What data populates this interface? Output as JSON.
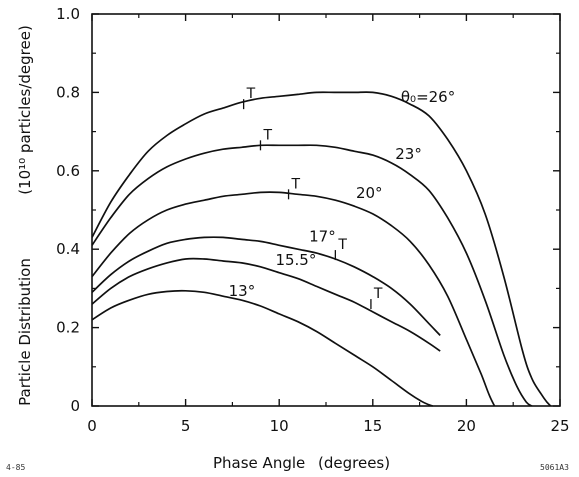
{
  "chart_data": {
    "type": "line",
    "xlabel": "Phase Angle",
    "xlabel_unit": "(degrees)",
    "ylabel": "Particle Distribution",
    "ylabel_unit": "(10¹⁰ particles/degree)",
    "xlim": [
      0,
      25
    ],
    "ylim": [
      0,
      1.0
    ],
    "x_ticks": [
      "0",
      "5",
      "10",
      "15",
      "20",
      "25"
    ],
    "y_ticks": [
      "0",
      "0.2",
      "0.4",
      "0.6",
      "0.8",
      "1.0"
    ],
    "grid": false,
    "legend": "none",
    "series": [
      {
        "name": "θ₀=26°",
        "label": "θ₀=26°",
        "label_pos": [
          16.5,
          0.775
        ],
        "x": [
          0,
          1,
          2,
          3,
          4,
          5,
          6,
          7,
          8,
          9,
          10,
          11,
          12,
          13,
          14,
          15,
          16,
          17,
          18,
          19,
          20,
          21,
          22,
          23,
          23.5,
          24,
          24.3,
          24.5
        ],
        "y": [
          0.43,
          0.52,
          0.59,
          0.65,
          0.69,
          0.72,
          0.745,
          0.76,
          0.775,
          0.785,
          0.79,
          0.795,
          0.8,
          0.8,
          0.8,
          0.8,
          0.79,
          0.77,
          0.74,
          0.68,
          0.6,
          0.49,
          0.33,
          0.14,
          0.07,
          0.03,
          0.01,
          0.0
        ],
        "T_marker": [
          8.1,
          0.77
        ]
      },
      {
        "name": "23°",
        "label": "23°",
        "label_pos": [
          16.2,
          0.63
        ],
        "x": [
          0,
          1,
          2,
          3,
          4,
          5,
          6,
          7,
          8,
          9,
          10,
          11,
          12,
          13,
          14,
          15,
          16,
          17,
          18,
          19,
          20,
          21,
          22,
          22.7,
          23.2,
          23.5
        ],
        "y": [
          0.41,
          0.48,
          0.54,
          0.58,
          0.61,
          0.63,
          0.645,
          0.655,
          0.66,
          0.665,
          0.665,
          0.665,
          0.665,
          0.66,
          0.65,
          0.64,
          0.62,
          0.59,
          0.55,
          0.48,
          0.39,
          0.27,
          0.13,
          0.05,
          0.01,
          0.0
        ],
        "T_marker": [
          9.0,
          0.665
        ]
      },
      {
        "name": "20°",
        "label": "20°",
        "label_pos": [
          14.1,
          0.53
        ],
        "x": [
          0,
          1,
          2,
          3,
          4,
          5,
          6,
          7,
          8,
          9,
          10,
          11,
          12,
          13,
          14,
          15,
          16,
          17,
          18,
          19,
          20,
          20.8,
          21.2,
          21.5
        ],
        "y": [
          0.33,
          0.39,
          0.44,
          0.475,
          0.5,
          0.515,
          0.525,
          0.535,
          0.54,
          0.545,
          0.545,
          0.54,
          0.535,
          0.525,
          0.51,
          0.49,
          0.46,
          0.42,
          0.36,
          0.28,
          0.17,
          0.08,
          0.03,
          0.0
        ],
        "T_marker": [
          10.5,
          0.54
        ]
      },
      {
        "name": "17°",
        "label": "17°",
        "label_pos": [
          11.6,
          0.42
        ],
        "x": [
          0,
          1,
          2,
          3,
          4,
          5,
          6,
          7,
          8,
          9,
          10,
          11,
          12,
          13,
          14,
          15,
          16,
          17,
          18,
          18.6
        ],
        "y": [
          0.29,
          0.335,
          0.37,
          0.395,
          0.415,
          0.425,
          0.43,
          0.43,
          0.425,
          0.42,
          0.41,
          0.4,
          0.39,
          0.375,
          0.355,
          0.33,
          0.3,
          0.26,
          0.21,
          0.18
        ],
        "T_marker": [
          13.0,
          0.385
        ]
      },
      {
        "name": "15.5°",
        "label": "15.5°",
        "label_pos": [
          9.8,
          0.36
        ],
        "x": [
          0,
          1,
          2,
          3,
          4,
          5,
          6,
          7,
          8,
          9,
          10,
          11,
          12,
          13,
          14,
          15,
          16,
          17,
          18,
          18.6
        ],
        "y": [
          0.26,
          0.3,
          0.33,
          0.35,
          0.365,
          0.375,
          0.375,
          0.37,
          0.365,
          0.355,
          0.34,
          0.325,
          0.305,
          0.285,
          0.265,
          0.24,
          0.215,
          0.19,
          0.16,
          0.14
        ],
        "T_marker": [
          14.9,
          0.26
        ]
      },
      {
        "name": "13°",
        "label": "13°",
        "label_pos": [
          7.3,
          0.28
        ],
        "x": [
          0,
          1,
          2,
          3,
          4,
          5,
          6,
          7,
          8,
          9,
          10,
          11,
          12,
          13,
          14,
          15,
          16,
          17,
          17.6,
          18.0,
          18.2
        ],
        "y": [
          0.22,
          0.25,
          0.27,
          0.285,
          0.292,
          0.294,
          0.29,
          0.28,
          0.27,
          0.255,
          0.235,
          0.215,
          0.19,
          0.16,
          0.13,
          0.1,
          0.065,
          0.03,
          0.012,
          0.003,
          0.0
        ],
        "T_marker": null
      }
    ],
    "marker_text": "T",
    "footnote_left": "4-85",
    "footnote_right": "5061A3"
  }
}
